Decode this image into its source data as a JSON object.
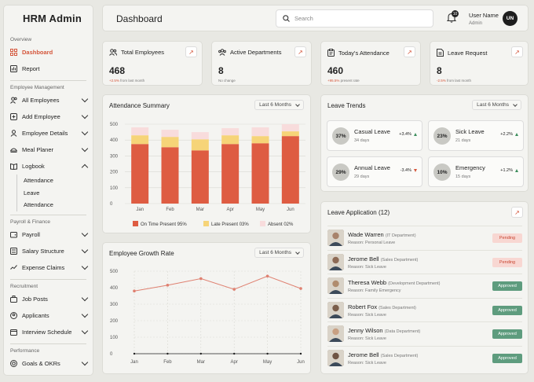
{
  "sidebar": {
    "brand": "HRM Admin",
    "sections": {
      "overview": "Overview",
      "employee": "Employee Management",
      "payroll": "Payroll & Finance",
      "recruitment": "Recruitment",
      "performance": "Performance"
    },
    "items": {
      "dashboard": "Dashboard",
      "report": "Report",
      "all_employees": "All Employees",
      "add_employee": "Add Employee",
      "employee_details": "Employee Details",
      "meal_planer": "Meal Planer",
      "logbook": "Logbook",
      "payroll": "Payroll",
      "salary_structure": "Salary Structure",
      "expense_claims": "Expense Claims",
      "job_posts": "Job Posts",
      "applicants": "Applicants",
      "interview_schedule": "Interview Schedule",
      "goals_okrs": "Goals & OKRs"
    },
    "logbook_sub": [
      "Attendance",
      "Leave",
      "Attendance"
    ]
  },
  "header": {
    "title": "Dashboard",
    "search_placeholder": "Search",
    "notification_count": "10",
    "user_name": "User Name",
    "user_role": "Admin",
    "avatar_initials": "UN"
  },
  "stats": [
    {
      "label": "Total Employees",
      "value": "468",
      "change": "+2.5%",
      "note": "from last month",
      "tone": "red",
      "icon": "users-icon"
    },
    {
      "label": "Active Departments",
      "value": "8",
      "change": "",
      "note": "No change",
      "tone": "none",
      "icon": "department-icon"
    },
    {
      "label": "Today's Attendance",
      "value": "460",
      "change": "+95.5%",
      "note": "present rate",
      "tone": "red",
      "icon": "clipboard-icon"
    },
    {
      "label": "Leave Request",
      "value": "8",
      "change": "-2.5%",
      "note": "from last month",
      "tone": "red",
      "icon": "document-icon"
    }
  ],
  "attendance": {
    "title": "Attendance Summary",
    "range": "Last 6 Months",
    "legend": [
      "On Time Present 95%",
      "Late Present 03%",
      "Absent 02%"
    ]
  },
  "growth": {
    "title": "Employee Growth Rate",
    "range": "Last 6 Months"
  },
  "chart_data": [
    {
      "type": "bar",
      "stacked": true,
      "categories": [
        "Jan",
        "Feb",
        "Mar",
        "Apr",
        "May",
        "Jun"
      ],
      "series": [
        {
          "name": "On Time Present 95%",
          "values": [
            375,
            355,
            335,
            375,
            380,
            425
          ],
          "color": "#de5c42"
        },
        {
          "name": "Late Present 03%",
          "values": [
            55,
            65,
            70,
            55,
            45,
            30
          ],
          "color": "#f6d478"
        },
        {
          "name": "Absent 02%",
          "values": [
            50,
            45,
            45,
            45,
            55,
            45
          ],
          "color": "#f8dcdc"
        }
      ],
      "yticks": [
        0,
        100,
        200,
        300,
        400,
        500
      ],
      "ylim": [
        0,
        500
      ],
      "grid": true,
      "legend": "bottom"
    },
    {
      "type": "line",
      "categories": [
        "Jan",
        "Feb",
        "Mar",
        "Apr",
        "May",
        "Jun"
      ],
      "series": [
        {
          "name": "",
          "values": [
            380,
            415,
            455,
            390,
            470,
            395
          ],
          "color": "#df8070"
        }
      ],
      "yticks": [
        0,
        100,
        200,
        300,
        400,
        500
      ],
      "ylim": [
        0,
        500
      ],
      "grid": true
    }
  ],
  "leave_trends": {
    "title": "Leave Trends",
    "range": "Last 6 Months",
    "items": [
      {
        "pct": "37%",
        "name": "Casual Leave",
        "days": "34 days",
        "change": "+3.4%",
        "dir": "up"
      },
      {
        "pct": "23%",
        "name": "Sick Leave",
        "days": "21 days",
        "change": "+2.2%",
        "dir": "up"
      },
      {
        "pct": "29%",
        "name": "Annual Leave",
        "days": "29 days",
        "change": "-3.4%",
        "dir": "down"
      },
      {
        "pct": "10%",
        "name": "Emergency",
        "days": "15 days",
        "change": "+1.2%",
        "dir": "up"
      }
    ]
  },
  "leave_application": {
    "title": "Leave Application (12)",
    "rows": [
      {
        "name": "Wade Warren",
        "dept": "(IT Department)",
        "reason": "Reason: Personal Leave",
        "status": "Pending"
      },
      {
        "name": "Jerome Bell",
        "dept": "(Sales Department)",
        "reason": "Reason: Sick Leave",
        "status": "Pending"
      },
      {
        "name": "Theresa Webb",
        "dept": "(Development Department)",
        "reason": "Reason: Family Emergency",
        "status": "Approved"
      },
      {
        "name": "Robert Fox",
        "dept": "(Sales Department)",
        "reason": "Reason: Sick Leave",
        "status": "Approved"
      },
      {
        "name": "Jenny Wilson",
        "dept": "(Data Department)",
        "reason": "Reason: Sick Leave",
        "status": "Approved"
      },
      {
        "name": "Jerome Bell",
        "dept": "(Sales Department)",
        "reason": "Reason: Sick Leave",
        "status": "Approved"
      }
    ]
  }
}
